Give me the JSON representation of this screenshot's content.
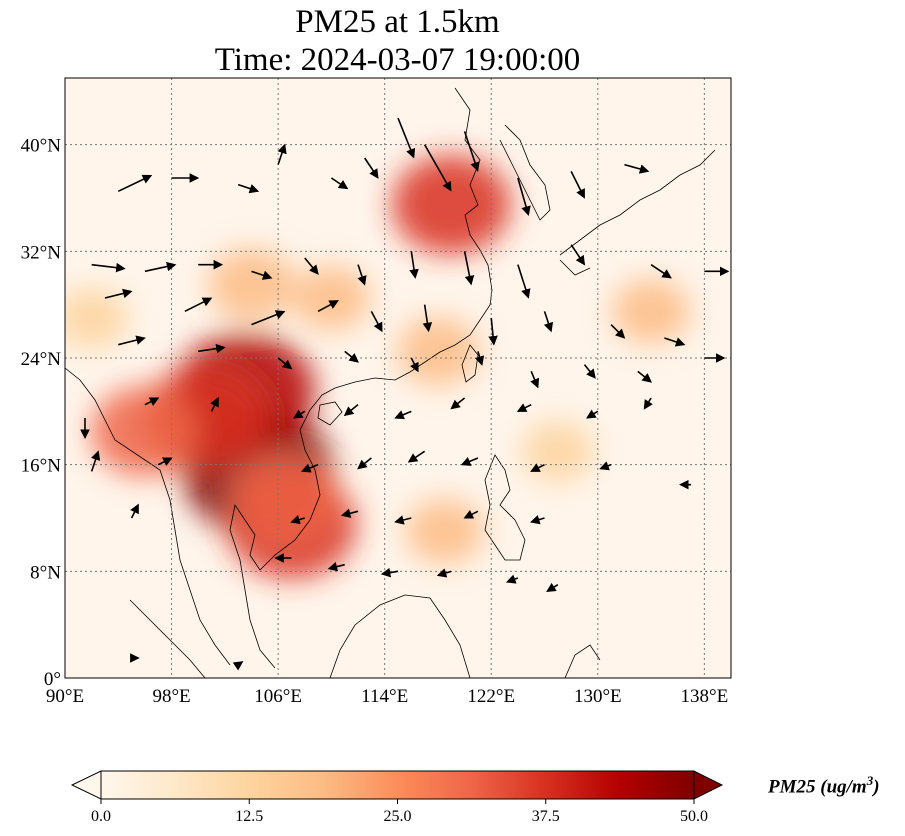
{
  "title": {
    "line1": "PM25 at 1.5km",
    "line2": "Time: 2024-03-07 19:00:00"
  },
  "map": {
    "lon_range": [
      90,
      140
    ],
    "lat_range": [
      0,
      45
    ],
    "lon_ticks": [
      {
        "value": 90,
        "label": "90°E"
      },
      {
        "value": 98,
        "label": "98°E"
      },
      {
        "value": 106,
        "label": "106°E"
      },
      {
        "value": 114,
        "label": "114°E"
      },
      {
        "value": 122,
        "label": "122°E"
      },
      {
        "value": 130,
        "label": "130°E"
      },
      {
        "value": 138,
        "label": "138°E"
      }
    ],
    "lat_ticks": [
      {
        "value": 0,
        "label": "0°"
      },
      {
        "value": 8,
        "label": "8°N"
      },
      {
        "value": 16,
        "label": "16°N"
      },
      {
        "value": 24,
        "label": "24°N"
      },
      {
        "value": 32,
        "label": "32°N"
      },
      {
        "value": 40,
        "label": "40°N"
      }
    ],
    "gridlines": true,
    "colormap": "OrRd",
    "background_color": "#fff5eb",
    "high_concentration_areas": [
      {
        "lon": 104.5,
        "lat": 15.5,
        "value": 50
      },
      {
        "lon": 103.5,
        "lat": 21.5,
        "value": 45
      },
      {
        "lon": 100.5,
        "lat": 19.5,
        "value": 38
      },
      {
        "lon": 107.0,
        "lat": 11.5,
        "value": 40
      },
      {
        "lon": 96.0,
        "lat": 18.5,
        "value": 30
      },
      {
        "lon": 106.5,
        "lat": 13.5,
        "value": 30
      },
      {
        "lon": 119.0,
        "lat": 35.5,
        "value": 35
      },
      {
        "lon": 104.0,
        "lat": 29.5,
        "value": 20
      },
      {
        "lon": 110.0,
        "lat": 28.5,
        "value": 16
      },
      {
        "lon": 118.0,
        "lat": 24.5,
        "value": 18
      },
      {
        "lon": 134.0,
        "lat": 27.5,
        "value": 16
      },
      {
        "lon": 92.0,
        "lat": 27.0,
        "value": 14
      },
      {
        "lon": 127.0,
        "lat": 17.0,
        "value": 14
      },
      {
        "lon": 118.5,
        "lat": 11.0,
        "value": 16
      }
    ],
    "wind_vectors": [
      {
        "lon": 94,
        "lat": 36.5,
        "u": 2.5,
        "v": 1.2
      },
      {
        "lon": 98,
        "lat": 37.5,
        "u": 2.0,
        "v": 0.0
      },
      {
        "lon": 103,
        "lat": 37.0,
        "u": 1.5,
        "v": -0.5
      },
      {
        "lon": 106,
        "lat": 38.5,
        "u": 0.5,
        "v": 1.5
      },
      {
        "lon": 110,
        "lat": 37.5,
        "u": 1.2,
        "v": -0.8
      },
      {
        "lon": 112.5,
        "lat": 39.0,
        "u": 1.0,
        "v": -1.5
      },
      {
        "lon": 115,
        "lat": 42.0,
        "u": 1.2,
        "v": -3.0
      },
      {
        "lon": 117,
        "lat": 40.0,
        "u": 2.0,
        "v": -3.5
      },
      {
        "lon": 120,
        "lat": 41.0,
        "u": 1.0,
        "v": -3.0
      },
      {
        "lon": 124,
        "lat": 37.5,
        "u": 0.8,
        "v": -2.8
      },
      {
        "lon": 128,
        "lat": 38.0,
        "u": 1.0,
        "v": -2.0
      },
      {
        "lon": 132,
        "lat": 38.5,
        "u": 1.8,
        "v": -0.5
      },
      {
        "lon": 92,
        "lat": 31.0,
        "u": 2.5,
        "v": -0.3
      },
      {
        "lon": 96,
        "lat": 30.5,
        "u": 2.3,
        "v": 0.5
      },
      {
        "lon": 100,
        "lat": 31.0,
        "u": 1.8,
        "v": 0.0
      },
      {
        "lon": 104,
        "lat": 30.5,
        "u": 1.5,
        "v": -0.5
      },
      {
        "lon": 108,
        "lat": 31.5,
        "u": 1.0,
        "v": -1.2
      },
      {
        "lon": 112,
        "lat": 31.0,
        "u": 0.5,
        "v": -1.5
      },
      {
        "lon": 116,
        "lat": 32.0,
        "u": 0.3,
        "v": -2.0
      },
      {
        "lon": 120,
        "lat": 32.0,
        "u": 0.5,
        "v": -2.5
      },
      {
        "lon": 124,
        "lat": 31.0,
        "u": 0.8,
        "v": -2.5
      },
      {
        "lon": 128,
        "lat": 32.5,
        "u": 1.0,
        "v": -1.5
      },
      {
        "lon": 134,
        "lat": 31.0,
        "u": 1.5,
        "v": -1.0
      },
      {
        "lon": 138,
        "lat": 30.5,
        "u": 1.8,
        "v": 0.0
      },
      {
        "lon": 93,
        "lat": 28.5,
        "u": 2.0,
        "v": 0.5
      },
      {
        "lon": 99,
        "lat": 27.5,
        "u": 2.0,
        "v": 1.0
      },
      {
        "lon": 104,
        "lat": 26.5,
        "u": 2.5,
        "v": 1.0
      },
      {
        "lon": 109,
        "lat": 27.5,
        "u": 1.5,
        "v": 0.8
      },
      {
        "lon": 113,
        "lat": 27.5,
        "u": 0.8,
        "v": -1.5
      },
      {
        "lon": 117,
        "lat": 28.0,
        "u": 0.3,
        "v": -2.0
      },
      {
        "lon": 122,
        "lat": 27.0,
        "u": 0.2,
        "v": -2.0
      },
      {
        "lon": 126,
        "lat": 27.5,
        "u": 0.5,
        "v": -1.5
      },
      {
        "lon": 131,
        "lat": 26.5,
        "u": 1.0,
        "v": -1.0
      },
      {
        "lon": 135,
        "lat": 25.5,
        "u": 1.5,
        "v": -0.5
      },
      {
        "lon": 94,
        "lat": 25.0,
        "u": 2.0,
        "v": 0.5
      },
      {
        "lon": 100,
        "lat": 24.5,
        "u": 2.0,
        "v": 0.3
      },
      {
        "lon": 106,
        "lat": 24.0,
        "u": 1.0,
        "v": -0.8
      },
      {
        "lon": 111,
        "lat": 24.5,
        "u": 1.0,
        "v": -0.8
      },
      {
        "lon": 116,
        "lat": 24.0,
        "u": 0.5,
        "v": -1.0
      },
      {
        "lon": 121,
        "lat": 24.5,
        "u": 0.3,
        "v": -1.0
      },
      {
        "lon": 125,
        "lat": 23.0,
        "u": 0.5,
        "v": -1.2
      },
      {
        "lon": 129,
        "lat": 23.5,
        "u": 0.8,
        "v": -1.0
      },
      {
        "lon": 133,
        "lat": 23.0,
        "u": 1.0,
        "v": -0.8
      },
      {
        "lon": 138,
        "lat": 24.0,
        "u": 1.5,
        "v": 0.0
      },
      {
        "lon": 91.5,
        "lat": 19.5,
        "u": 0.0,
        "v": -1.5
      },
      {
        "lon": 96,
        "lat": 20.5,
        "u": 1.0,
        "v": 0.5
      },
      {
        "lon": 101,
        "lat": 20.0,
        "u": 0.5,
        "v": 1.0
      },
      {
        "lon": 108,
        "lat": 20.0,
        "u": -0.8,
        "v": -0.5
      },
      {
        "lon": 112,
        "lat": 20.5,
        "u": -1.0,
        "v": -0.8
      },
      {
        "lon": 116,
        "lat": 20.0,
        "u": -1.2,
        "v": -0.5
      },
      {
        "lon": 120,
        "lat": 21.0,
        "u": -1.0,
        "v": -0.8
      },
      {
        "lon": 125,
        "lat": 20.5,
        "u": -1.0,
        "v": -0.5
      },
      {
        "lon": 130,
        "lat": 20.0,
        "u": -0.8,
        "v": -0.5
      },
      {
        "lon": 134,
        "lat": 21.0,
        "u": -0.5,
        "v": -0.8
      },
      {
        "lon": 92,
        "lat": 15.5,
        "u": 0.5,
        "v": 1.5
      },
      {
        "lon": 97,
        "lat": 16.0,
        "u": 1.0,
        "v": 0.5
      },
      {
        "lon": 109,
        "lat": 16.0,
        "u": -1.2,
        "v": -0.5
      },
      {
        "lon": 113,
        "lat": 16.5,
        "u": -1.0,
        "v": -0.8
      },
      {
        "lon": 117,
        "lat": 17.0,
        "u": -1.2,
        "v": -0.8
      },
      {
        "lon": 121,
        "lat": 16.5,
        "u": -1.2,
        "v": -0.5
      },
      {
        "lon": 126,
        "lat": 16.0,
        "u": -1.0,
        "v": -0.5
      },
      {
        "lon": 131,
        "lat": 16.0,
        "u": -0.8,
        "v": -0.3
      },
      {
        "lon": 137,
        "lat": 14.5,
        "u": -0.8,
        "v": 0.0
      },
      {
        "lon": 95,
        "lat": 12.0,
        "u": 0.5,
        "v": 1.0
      },
      {
        "lon": 108,
        "lat": 12.0,
        "u": -1.0,
        "v": -0.3
      },
      {
        "lon": 112,
        "lat": 12.5,
        "u": -1.2,
        "v": -0.3
      },
      {
        "lon": 116,
        "lat": 12.0,
        "u": -1.2,
        "v": -0.3
      },
      {
        "lon": 121,
        "lat": 12.5,
        "u": -1.0,
        "v": -0.5
      },
      {
        "lon": 126,
        "lat": 12.0,
        "u": -1.0,
        "v": -0.3
      },
      {
        "lon": 107,
        "lat": 9.0,
        "u": -1.2,
        "v": 0.0
      },
      {
        "lon": 111,
        "lat": 8.5,
        "u": -1.2,
        "v": -0.3
      },
      {
        "lon": 115,
        "lat": 8.0,
        "u": -1.2,
        "v": -0.2
      },
      {
        "lon": 119,
        "lat": 8.0,
        "u": -1.0,
        "v": -0.3
      },
      {
        "lon": 124,
        "lat": 7.5,
        "u": -0.8,
        "v": -0.3
      },
      {
        "lon": 127,
        "lat": 7.0,
        "u": -0.8,
        "v": -0.5
      },
      {
        "lon": 95,
        "lat": 1.5,
        "u": 0.5,
        "v": 0.0
      },
      {
        "lon": 103,
        "lat": 1.0,
        "u": 0.3,
        "v": 0.2
      }
    ]
  },
  "colorbar": {
    "min": 0.0,
    "max": 50.0,
    "ticks": [
      "0.0",
      "12.5",
      "25.0",
      "37.5",
      "50.0"
    ],
    "label_main": "PM25 (ug/m",
    "label_exp": "3",
    "label_close": ")",
    "extend": "both"
  }
}
